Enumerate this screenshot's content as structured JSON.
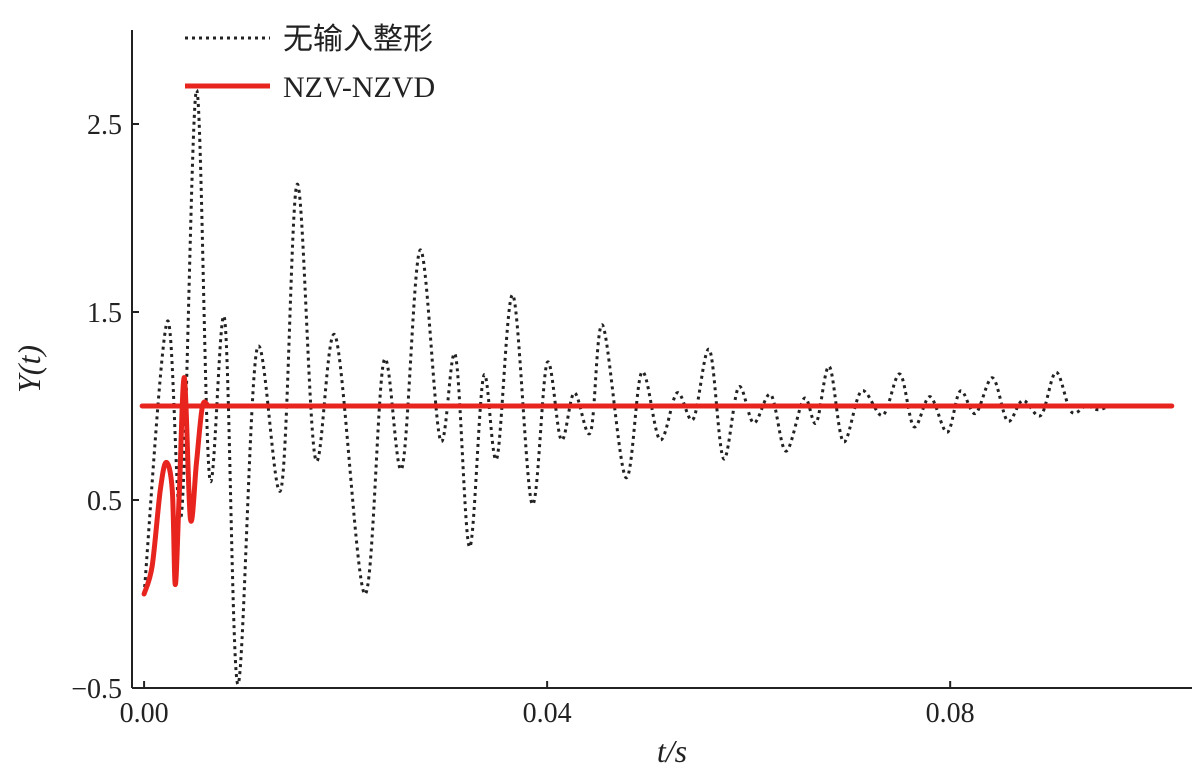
{
  "chart_data": {
    "type": "line",
    "title": "",
    "xlabel": "t/s",
    "ylabel": "Y(t)",
    "xlim": [
      -0.0012,
      0.104
    ],
    "ylim": [
      -0.5,
      3.0
    ],
    "x_ticks": [
      0.0,
      0.04,
      0.08
    ],
    "x_tick_labels": [
      "0.00",
      "0.04",
      "0.08"
    ],
    "y_ticks": [
      -0.5,
      0.5,
      1.5,
      2.5
    ],
    "y_tick_labels": [
      "−0.5",
      "0.5",
      "1.5",
      "2.5"
    ],
    "grid": false,
    "legend_position": "top-left",
    "series": [
      {
        "name": "无输入整形",
        "color": "#222222",
        "style": "dotted",
        "x": [
          0.0,
          0.0023,
          0.0037,
          0.0052,
          0.0065,
          0.008,
          0.0093,
          0.0112,
          0.0136,
          0.0152,
          0.017,
          0.019,
          0.0219,
          0.0238,
          0.0256,
          0.0274,
          0.0294,
          0.0309,
          0.0323,
          0.0337,
          0.035,
          0.0366,
          0.0385,
          0.04,
          0.0414,
          0.0427,
          0.0443,
          0.0455,
          0.0478,
          0.0494,
          0.0512,
          0.0529,
          0.0545,
          0.0561,
          0.0575,
          0.059,
          0.0605,
          0.0622,
          0.0637,
          0.0655,
          0.0667,
          0.068,
          0.0694,
          0.0712,
          0.0733,
          0.075,
          0.0764,
          0.078,
          0.0797,
          0.081,
          0.0825,
          0.0842,
          0.0857,
          0.0872,
          0.089,
          0.0905,
          0.092,
          0.0935,
          0.0947,
          0.096,
          0.0978,
          0.0995
        ],
        "y": [
          0.0,
          1.45,
          0.42,
          2.68,
          0.62,
          1.46,
          -0.48,
          1.3,
          0.56,
          2.18,
          0.72,
          1.37,
          0.0,
          1.24,
          0.67,
          1.83,
          0.82,
          1.27,
          0.25,
          1.16,
          0.72,
          1.59,
          0.48,
          1.23,
          0.82,
          1.07,
          0.86,
          1.43,
          0.62,
          1.18,
          0.82,
          1.07,
          0.93,
          1.3,
          0.72,
          1.1,
          0.91,
          1.06,
          0.76,
          1.04,
          0.91,
          1.21,
          0.81,
          1.08,
          0.95,
          1.17,
          0.89,
          1.05,
          0.86,
          1.08,
          0.96,
          1.15,
          0.92,
          1.03,
          0.95,
          1.18,
          0.97,
          1.0,
          0.98,
          1.0,
          1.0,
          1.0
        ]
      },
      {
        "name": "NZV-NZVD",
        "color": "#e8241f",
        "style": "solid",
        "x": [
          0.0,
          0.0008,
          0.0016,
          0.0022,
          0.0028,
          0.0031,
          0.0035,
          0.004,
          0.0046,
          0.0052,
          0.0058,
          0.0064,
          0.007,
          0.102
        ],
        "y": [
          0.0,
          0.15,
          0.55,
          0.7,
          0.55,
          0.05,
          0.55,
          1.15,
          0.4,
          0.7,
          1.0,
          1.0,
          1.0,
          1.0
        ]
      }
    ]
  }
}
